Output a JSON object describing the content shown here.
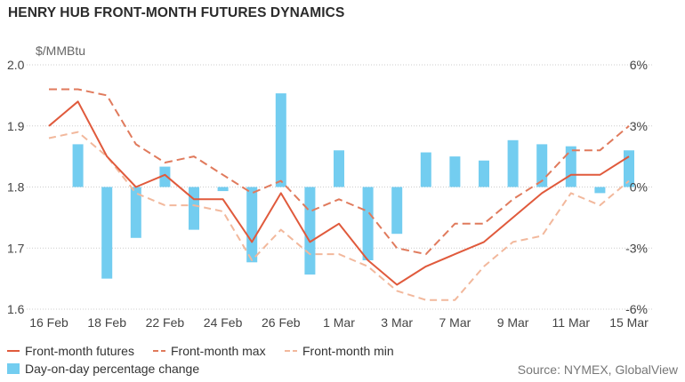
{
  "title": "HENRY HUB FRONT-MONTH FUTURES DYNAMICS",
  "unit_label": "$/MMBtu",
  "source": "Source: NYMEX, GlobalView",
  "colors": {
    "futures": "#e05a3c",
    "max": "#e07a5c",
    "min": "#f2b89c",
    "bars": "#73cdf0",
    "grid": "#cccccc"
  },
  "chart_data": {
    "type": "bar+line",
    "title": "HENRY HUB FRONT-MONTH FUTURES DYNAMICS",
    "ylabel": "$/MMBtu",
    "x_tick_labels": [
      "16 Feb",
      "18 Feb",
      "22 Feb",
      "24 Feb",
      "26 Feb",
      "1 Mar",
      "3 Mar",
      "7 Mar",
      "9 Mar",
      "11 Mar",
      "15 Mar"
    ],
    "x_tick_positions": [
      0,
      2,
      4,
      6,
      8,
      10,
      12,
      14,
      16,
      18,
      20
    ],
    "x_count": 21,
    "y_left": {
      "min": 1.6,
      "max": 2.0,
      "ticks": [
        "1.6",
        "1.7",
        "1.8",
        "1.9",
        "2.0"
      ]
    },
    "y_right": {
      "min": -6,
      "max": 6,
      "ticks": [
        "-6%",
        "-3%",
        "0%",
        "3%",
        "6%"
      ]
    },
    "grid": true,
    "legend_position": "bottom",
    "series": [
      {
        "name": "Front-month futures",
        "axis": "left",
        "style": "solid",
        "values": [
          1.9,
          1.94,
          1.85,
          1.8,
          1.82,
          1.78,
          1.78,
          1.71,
          1.79,
          1.71,
          1.74,
          1.68,
          1.64,
          1.67,
          1.69,
          1.71,
          1.75,
          1.79,
          1.82,
          1.82,
          1.85
        ]
      },
      {
        "name": "Front-month max",
        "axis": "left",
        "style": "dashed",
        "values": [
          1.96,
          1.96,
          1.95,
          1.87,
          1.84,
          1.85,
          1.82,
          1.79,
          1.81,
          1.76,
          1.78,
          1.76,
          1.7,
          1.69,
          1.74,
          1.74,
          1.78,
          1.81,
          1.86,
          1.86,
          1.9
        ]
      },
      {
        "name": "Front-month min",
        "axis": "left",
        "style": "dashed",
        "values": [
          1.88,
          1.89,
          1.85,
          1.79,
          1.77,
          1.77,
          1.76,
          1.68,
          1.73,
          1.69,
          1.69,
          1.67,
          1.63,
          1.615,
          1.615,
          1.67,
          1.71,
          1.72,
          1.79,
          1.77,
          1.81
        ]
      },
      {
        "name": "Day-on-day percentage change",
        "axis": "right",
        "type": "bar",
        "values": [
          null,
          2.1,
          -4.5,
          -2.5,
          1.0,
          -2.1,
          -0.2,
          -3.7,
          4.6,
          -4.3,
          1.8,
          -3.6,
          -2.3,
          1.7,
          1.5,
          1.3,
          2.3,
          2.1,
          2.0,
          -0.3,
          1.8
        ]
      }
    ]
  },
  "legend": [
    {
      "label": "Front-month futures",
      "kind": "solid"
    },
    {
      "label": "Front-month max",
      "kind": "dashed"
    },
    {
      "label": "Front-month min",
      "kind": "dashed-light"
    },
    {
      "label": "Day-on-day percentage change",
      "kind": "bar"
    }
  ]
}
